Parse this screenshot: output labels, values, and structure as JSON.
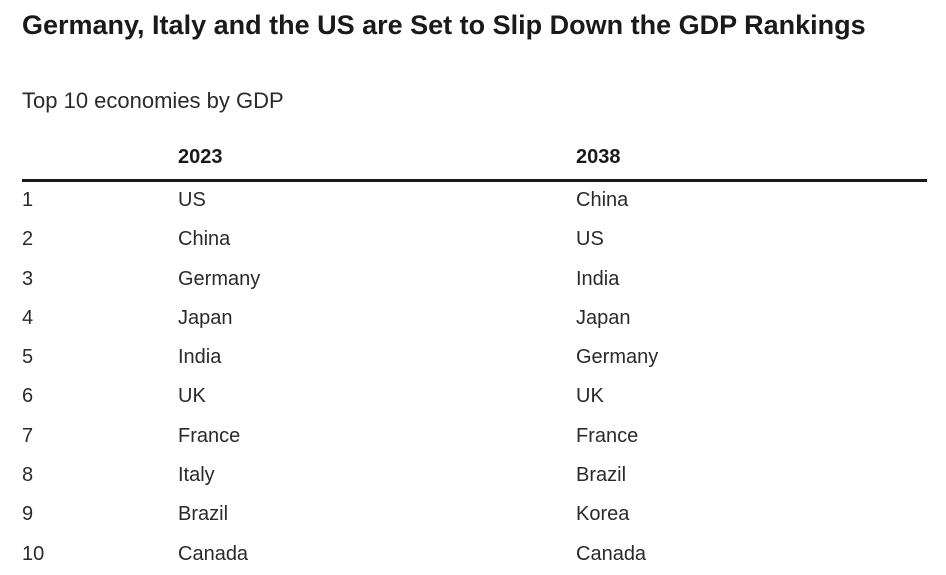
{
  "title": "Germany, Italy and the US are Set to Slip Down the GDP Rankings",
  "subtitle": "Top 10 economies by GDP",
  "chart_data": {
    "type": "table",
    "title": "Germany, Italy and the US are Set to Slip Down the GDP Rankings",
    "subtitle": "Top 10 economies by GDP",
    "columns": [
      "",
      "2023",
      "2038"
    ],
    "rows": [
      {
        "rank": "1",
        "y2023": "US",
        "y2038": "China"
      },
      {
        "rank": "2",
        "y2023": "China",
        "y2038": "US"
      },
      {
        "rank": "3",
        "y2023": "Germany",
        "y2038": "India"
      },
      {
        "rank": "4",
        "y2023": "Japan",
        "y2038": "Japan"
      },
      {
        "rank": "5",
        "y2023": "India",
        "y2038": "Germany"
      },
      {
        "rank": "6",
        "y2023": "UK",
        "y2038": "UK"
      },
      {
        "rank": "7",
        "y2023": "France",
        "y2038": "France"
      },
      {
        "rank": "8",
        "y2023": "Italy",
        "y2038": "Brazil"
      },
      {
        "rank": "9",
        "y2023": "Brazil",
        "y2038": "Korea"
      },
      {
        "rank": "10",
        "y2023": "Canada",
        "y2038": "Canada"
      }
    ]
  }
}
